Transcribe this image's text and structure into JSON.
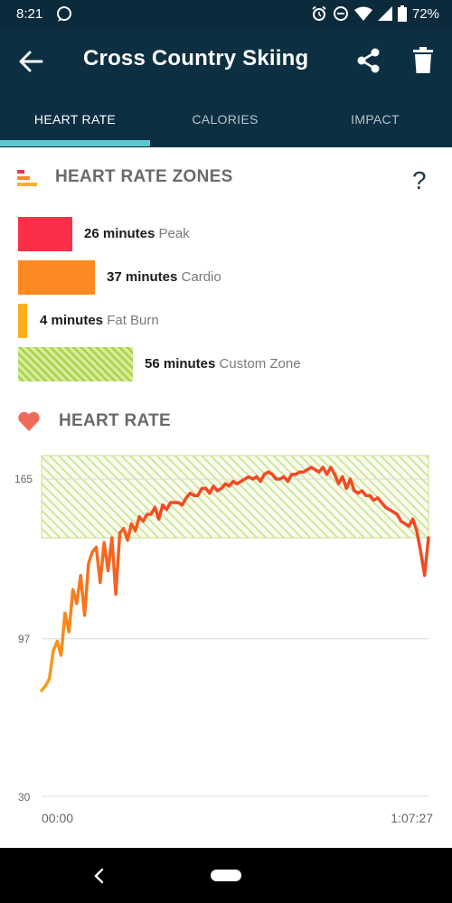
{
  "status_bar": {
    "time": "8:21",
    "battery": "72%"
  },
  "app_bar": {
    "title": "Cross Country Skiing"
  },
  "tabs": [
    {
      "label": "HEART RATE"
    },
    {
      "label": "CALORIES"
    },
    {
      "label": "IMPACT"
    }
  ],
  "zones_section": {
    "title": "HEART RATE ZONES",
    "help": "?",
    "zones": [
      {
        "minutes": "26 minutes",
        "label": "Peak",
        "color": "#fa3049",
        "value": 26
      },
      {
        "minutes": "37 minutes",
        "label": "Cardio",
        "color": "#fb8a22",
        "value": 37
      },
      {
        "minutes": "4 minutes",
        "label": "Fat Burn",
        "color": "#fbb21a",
        "value": 4
      },
      {
        "minutes": "56 minutes",
        "label": "Custom Zone",
        "color": "#b7d95a",
        "value": 56
      }
    ]
  },
  "hr_section": {
    "title": "HEART RATE"
  },
  "chart_data": {
    "type": "line",
    "y_ticks": [
      165,
      97,
      30
    ],
    "ylim": [
      30,
      175
    ],
    "x_tick_labels": [
      "00:00",
      "1:07:27"
    ],
    "custom_zone_band": [
      140,
      175
    ],
    "series": [
      {
        "values": [
          75,
          77,
          80,
          92,
          96,
          90,
          108,
          100,
          118,
          112,
          124,
          107,
          129,
          134,
          136,
          121,
          138,
          126,
          140,
          116,
          142,
          144,
          139,
          146,
          143,
          149,
          147,
          150,
          150,
          153,
          148,
          154,
          152,
          155,
          155,
          155,
          154,
          157,
          159,
          158,
          158,
          161,
          161,
          159,
          162,
          160,
          161,
          163,
          162,
          164,
          163,
          164,
          165,
          166,
          165,
          166,
          164,
          167,
          168,
          167,
          165,
          165,
          166,
          164,
          167,
          167,
          168,
          168,
          169,
          170,
          169,
          168,
          170,
          167,
          170,
          167,
          163,
          166,
          161,
          165,
          160,
          159,
          160,
          158,
          158,
          156,
          157,
          155,
          153,
          152,
          151,
          150,
          147,
          146,
          145,
          148,
          143,
          134,
          124,
          140
        ],
        "colors": [
          "#f7a21a",
          "#f7711f",
          "#f24a24"
        ]
      }
    ]
  },
  "colors": {
    "header_bg": "#0d2f42",
    "tab_indicator": "#5cc7cf",
    "nav_bg": "#000000"
  }
}
